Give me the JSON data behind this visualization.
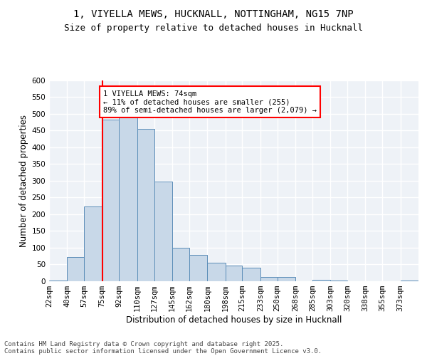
{
  "title_line1": "1, VIYELLA MEWS, HUCKNALL, NOTTINGHAM, NG15 7NP",
  "title_line2": "Size of property relative to detached houses in Hucknall",
  "xlabel": "Distribution of detached houses by size in Hucknall",
  "ylabel": "Number of detached properties",
  "footer_line1": "Contains HM Land Registry data © Crown copyright and database right 2025.",
  "footer_line2": "Contains public sector information licensed under the Open Government Licence v3.0.",
  "categories": [
    "22sqm",
    "40sqm",
    "57sqm",
    "75sqm",
    "92sqm",
    "110sqm",
    "127sqm",
    "145sqm",
    "162sqm",
    "180sqm",
    "198sqm",
    "215sqm",
    "233sqm",
    "250sqm",
    "268sqm",
    "285sqm",
    "303sqm",
    "320sqm",
    "338sqm",
    "355sqm",
    "373sqm"
  ],
  "bin_edges": [
    22,
    40,
    57,
    75,
    92,
    110,
    127,
    145,
    162,
    180,
    198,
    215,
    233,
    250,
    268,
    285,
    303,
    320,
    338,
    355,
    373,
    391
  ],
  "values": [
    3,
    72,
    222,
    483,
    488,
    455,
    297,
    100,
    78,
    56,
    47,
    40,
    12,
    12,
    0,
    5,
    3,
    0,
    0,
    0,
    3
  ],
  "bar_color": "#c8d8e8",
  "bar_edge_color": "#5b8db8",
  "annotation_box_text_line1": "1 VIYELLA MEWS: 74sqm",
  "annotation_box_text_line2": "← 11% of detached houses are smaller (255)",
  "annotation_box_text_line3": "89% of semi-detached houses are larger (2,079) →",
  "annotation_box_color": "white",
  "annotation_box_edge_color": "red",
  "vline_x_index": 3,
  "vline_color": "red",
  "ylim": [
    0,
    600
  ],
  "yticks": [
    0,
    50,
    100,
    150,
    200,
    250,
    300,
    350,
    400,
    450,
    500,
    550,
    600
  ],
  "background_color": "#eef2f7",
  "grid_color": "white",
  "title_fontsize": 10,
  "subtitle_fontsize": 9,
  "axis_label_fontsize": 8.5,
  "tick_fontsize": 7.5,
  "annotation_fontsize": 7.5,
  "footer_fontsize": 6.5
}
